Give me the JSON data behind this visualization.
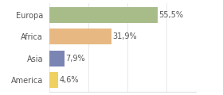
{
  "categories": [
    "Europa",
    "Africa",
    "Asia",
    "America"
  ],
  "values": [
    55.5,
    31.9,
    7.9,
    4.6
  ],
  "bar_colors": [
    "#a8bc8a",
    "#e8b882",
    "#7b85b4",
    "#f0d060"
  ],
  "labels": [
    "55,5%",
    "31,9%",
    "7,9%",
    "4,6%"
  ],
  "xlim": [
    0,
    75
  ],
  "background_color": "#ffffff",
  "bar_height": 0.72,
  "label_fontsize": 7,
  "category_fontsize": 7,
  "grid_color": "#e0e0e0",
  "text_color": "#555555"
}
